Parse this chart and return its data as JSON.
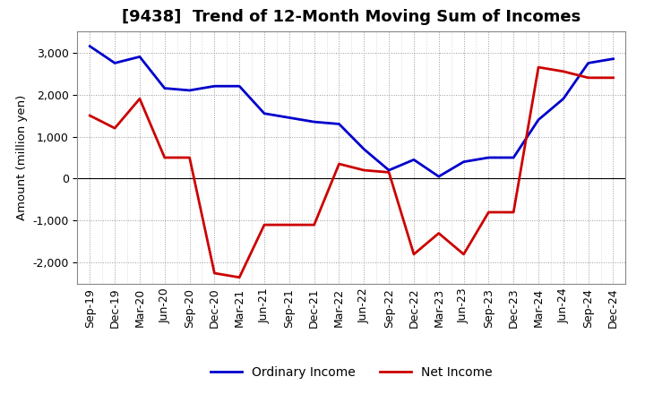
{
  "title": "[9438]  Trend of 12-Month Moving Sum of Incomes",
  "ylabel": "Amount (million yen)",
  "x_labels": [
    "Sep-19",
    "Dec-19",
    "Mar-20",
    "Jun-20",
    "Sep-20",
    "Dec-20",
    "Mar-21",
    "Jun-21",
    "Sep-21",
    "Dec-21",
    "Mar-22",
    "Jun-22",
    "Sep-22",
    "Dec-22",
    "Mar-23",
    "Jun-23",
    "Sep-23",
    "Dec-23",
    "Mar-24",
    "Jun-24",
    "Sep-24",
    "Dec-24"
  ],
  "ordinary_income": [
    3150,
    2750,
    2900,
    2150,
    2100,
    2200,
    2200,
    1550,
    1450,
    1350,
    1300,
    700,
    200,
    450,
    50,
    400,
    500,
    500,
    1400,
    1900,
    2750,
    2850
  ],
  "net_income": [
    1500,
    1200,
    1900,
    500,
    500,
    -2250,
    -2350,
    -1100,
    -1100,
    -1100,
    350,
    200,
    150,
    -1800,
    -1300,
    -1800,
    -800,
    -800,
    2650,
    2550,
    2400,
    2400
  ],
  "ordinary_color": "#0000cc",
  "net_color": "#cc0000",
  "background_color": "#ffffff",
  "grid_color": "#888888",
  "ylim": [
    -2500,
    3500
  ],
  "yticks": [
    -2000,
    -1000,
    0,
    1000,
    2000,
    3000
  ],
  "title_fontsize": 13,
  "axis_fontsize": 9,
  "legend_labels": [
    "Ordinary Income",
    "Net Income"
  ]
}
